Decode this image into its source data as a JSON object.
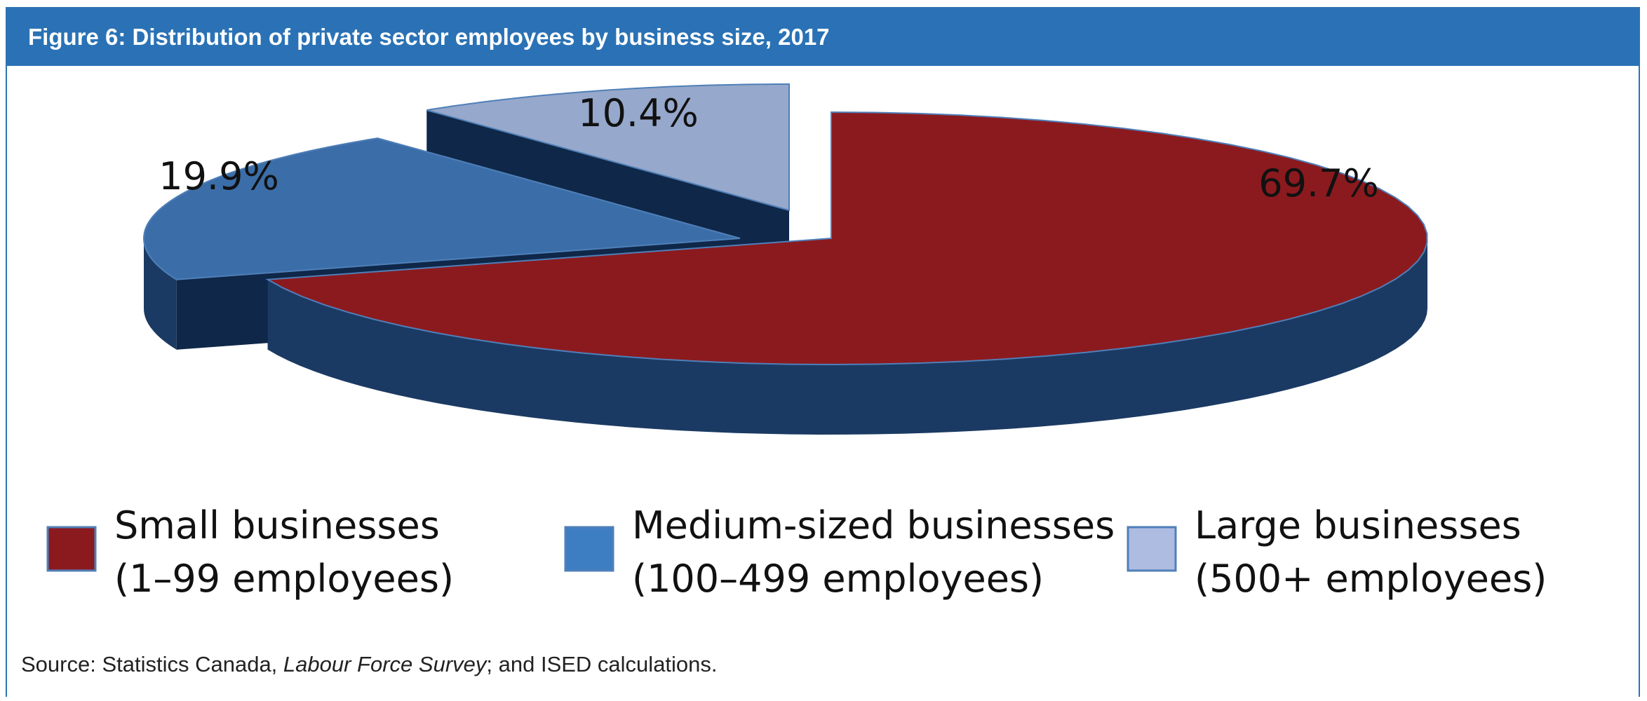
{
  "header": {
    "title": "Figure 6: Distribution of private sector employees by business size, 2017"
  },
  "chart_data": {
    "type": "pie",
    "style": "3d-exploded",
    "categories": [
      "Small businesses (1–99 employees)",
      "Medium-sized businesses (100–499 employees)",
      "Large businesses (500+ employees)"
    ],
    "values": [
      69.7,
      19.9,
      10.4
    ],
    "labels": [
      "69.7%",
      "19.9%",
      "10.4%"
    ],
    "colors": [
      "#8b1a1f",
      "#3b6ea8",
      "#96a8cb"
    ],
    "legend_position": "bottom",
    "legend": [
      {
        "line1": "Small businesses",
        "line2": "(1–99 employees)",
        "color": "#8b1a1f"
      },
      {
        "line1": "Medium-sized businesses",
        "line2": "(100–499 employees)",
        "color": "#3d7ec3"
      },
      {
        "line1": "Large businesses",
        "line2": "(500+ employees)",
        "color": "#aebce2"
      }
    ]
  },
  "source": {
    "prefix": "Source: Statistics Canada, ",
    "italic": "Labour Force Survey",
    "suffix": "; and ISED calculations."
  }
}
